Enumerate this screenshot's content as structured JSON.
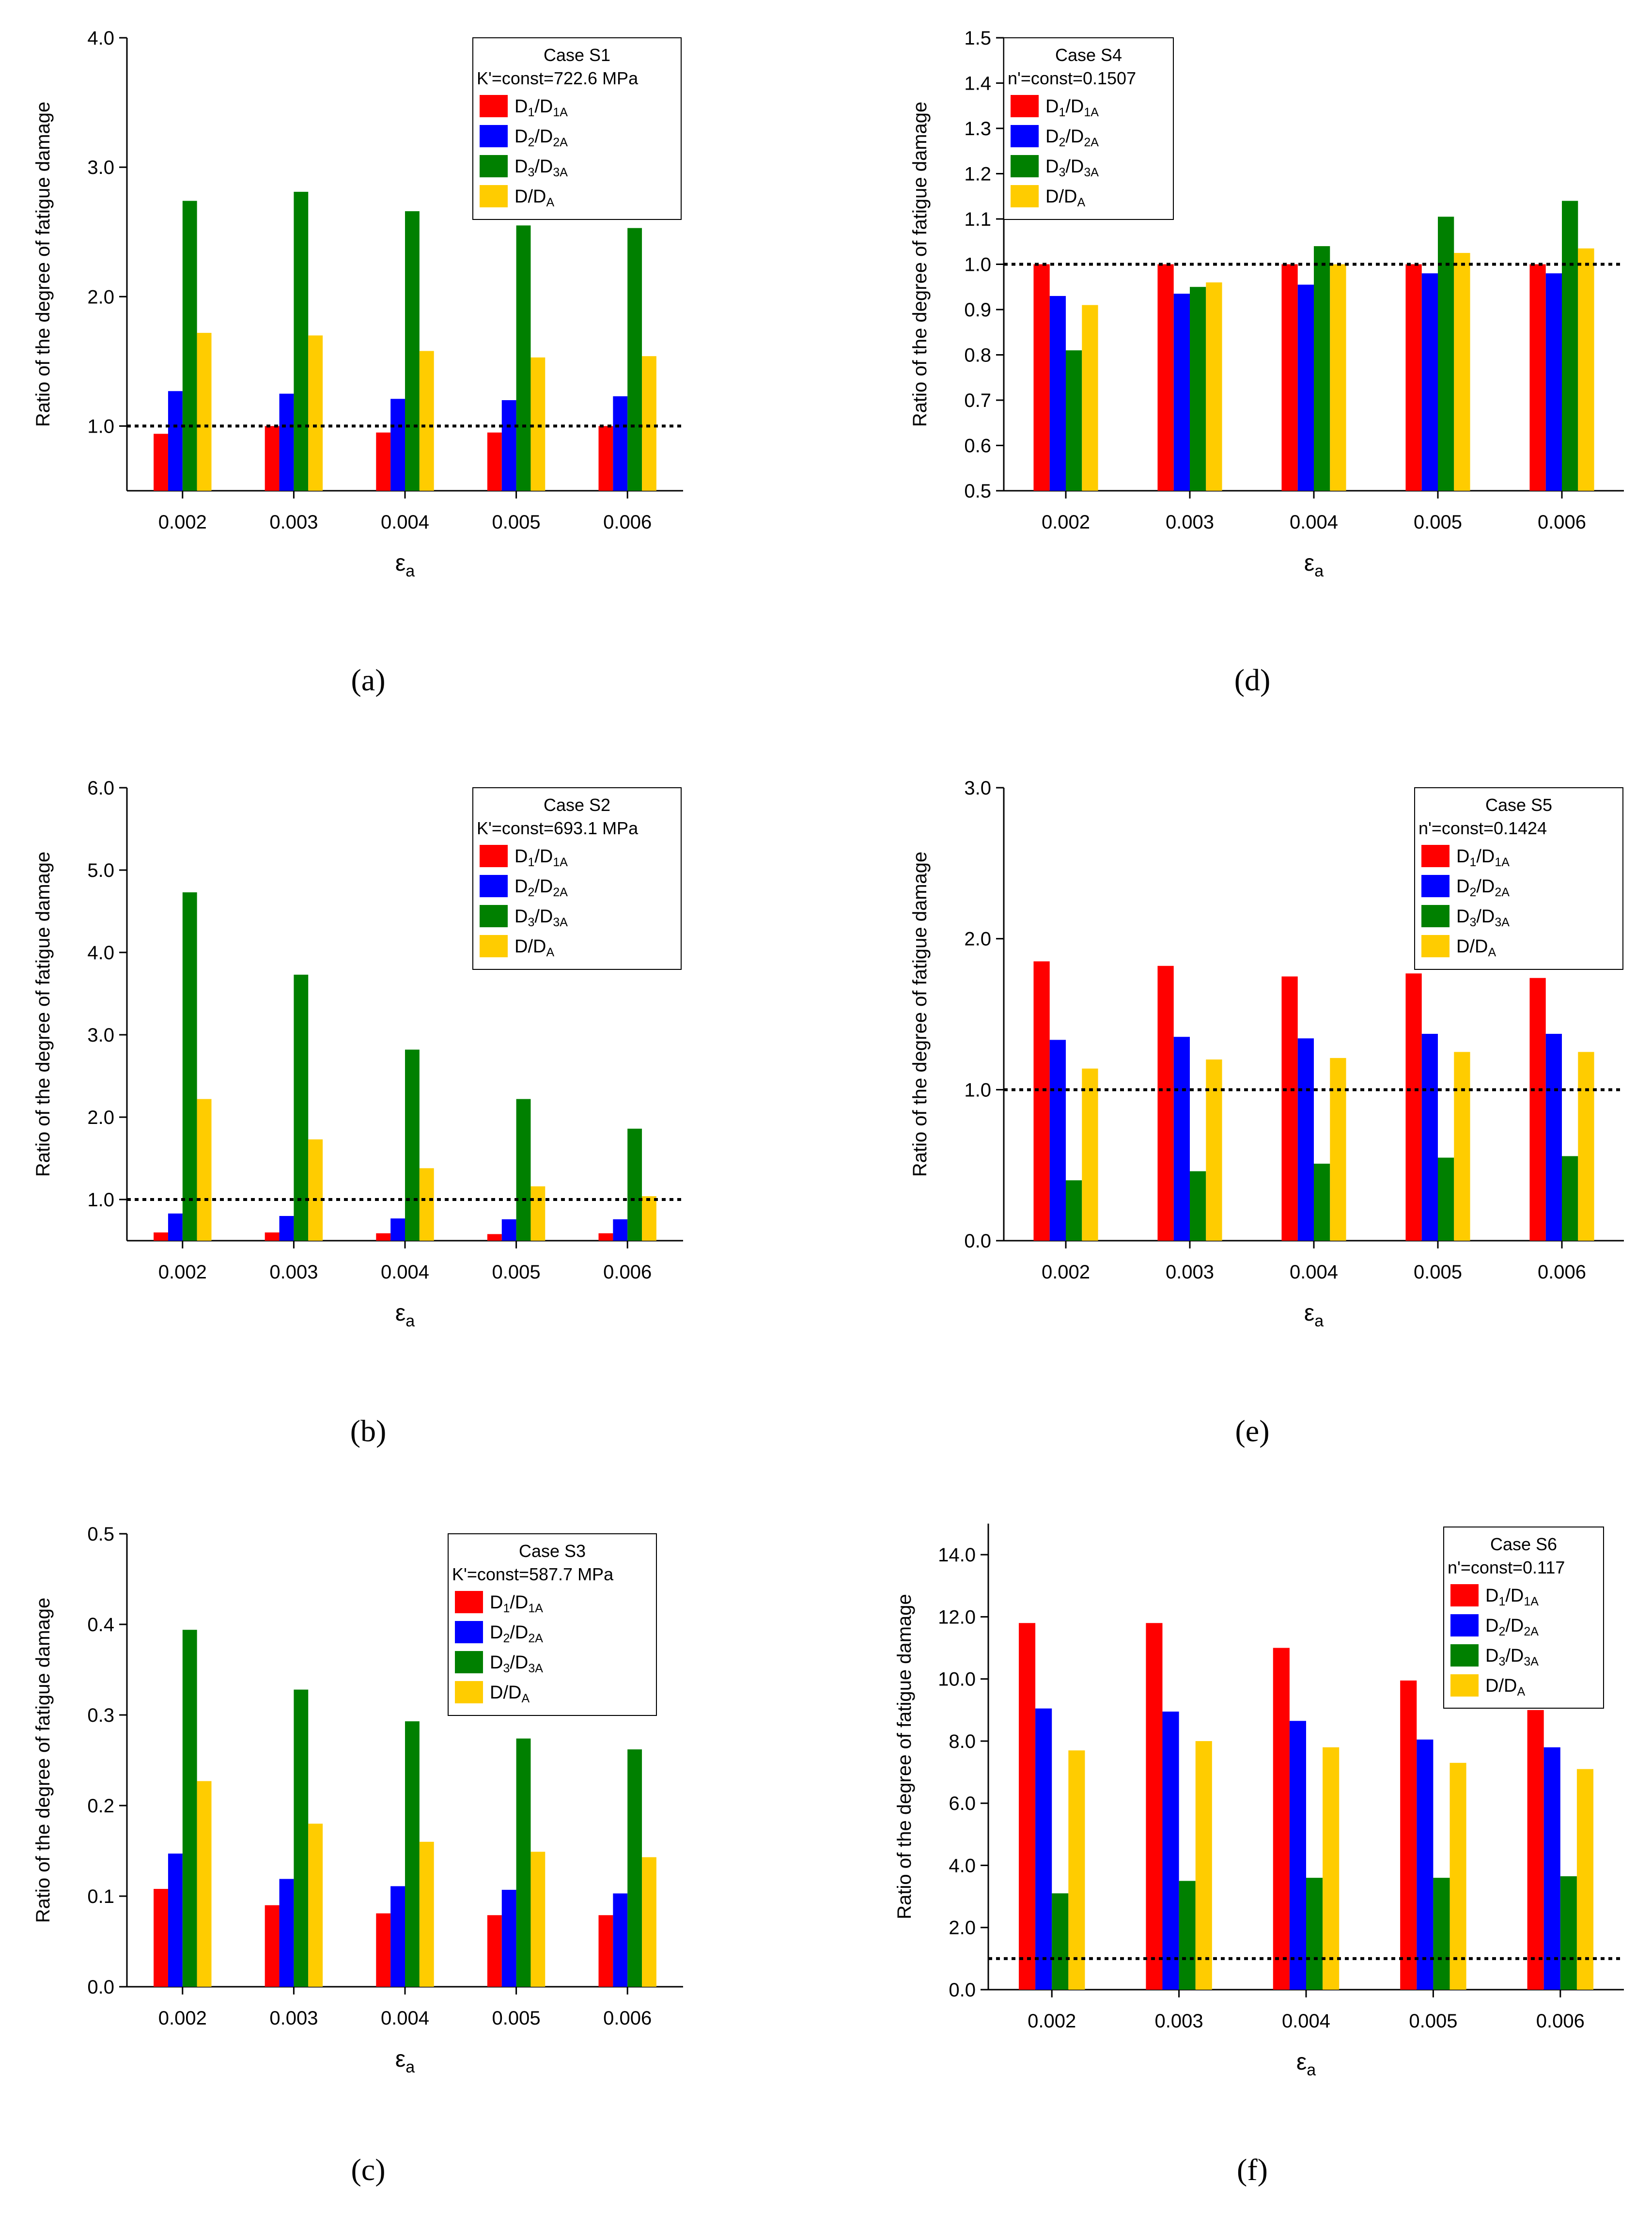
{
  "chart_data": [
    {
      "type": "bar",
      "panel_label": "(a)",
      "ylabel": "Ratio of the degree of fatigue damage",
      "xlabel": "εa",
      "categories": [
        "0.002",
        "0.003",
        "0.004",
        "0.005",
        "0.006"
      ],
      "ylim": [
        0.5,
        4.0
      ],
      "yticks": [
        1.0,
        2.0,
        3.0,
        4.0
      ],
      "ytick_labels": [
        "1.0",
        "2.0",
        "3.0",
        "4.0"
      ],
      "reference_line": 1.0,
      "legend_title": "Case S1",
      "legend_subtitle": "K'=const=722.6 MPa",
      "legend_position": "top-right",
      "series": [
        {
          "name": "D1/D1A",
          "color": "#ff0000",
          "values": [
            0.94,
            1.0,
            0.95,
            0.95,
            1.0
          ]
        },
        {
          "name": "D2/D2A",
          "color": "#0000ff",
          "values": [
            1.27,
            1.25,
            1.21,
            1.2,
            1.23
          ]
        },
        {
          "name": "D3/D3A",
          "color": "#008000",
          "values": [
            2.74,
            2.81,
            2.66,
            2.55,
            2.53
          ]
        },
        {
          "name": "D/DA",
          "color": "#ffcc00",
          "values": [
            1.72,
            1.7,
            1.58,
            1.53,
            1.54
          ]
        }
      ]
    },
    {
      "type": "bar",
      "panel_label": "(b)",
      "ylabel": "Ratio of the degree of fatigue damage",
      "xlabel": "εa",
      "categories": [
        "0.002",
        "0.003",
        "0.004",
        "0.005",
        "0.006"
      ],
      "ylim": [
        0.5,
        6.0
      ],
      "yticks": [
        1.0,
        2.0,
        3.0,
        4.0,
        5.0,
        6.0
      ],
      "ytick_labels": [
        "1.0",
        "2.0",
        "3.0",
        "4.0",
        "5.0",
        "6.0"
      ],
      "reference_line": 1.0,
      "legend_title": "Case S2",
      "legend_subtitle": "K'=const=693.1 MPa",
      "legend_position": "top-right",
      "series": [
        {
          "name": "D1/D1A",
          "color": "#ff0000",
          "values": [
            0.6,
            0.6,
            0.59,
            0.58,
            0.59
          ]
        },
        {
          "name": "D2/D2A",
          "color": "#0000ff",
          "values": [
            0.83,
            0.8,
            0.77,
            0.76,
            0.76
          ]
        },
        {
          "name": "D3/D3A",
          "color": "#008000",
          "values": [
            4.73,
            3.73,
            2.82,
            2.22,
            1.86
          ]
        },
        {
          "name": "D/DA",
          "color": "#ffcc00",
          "values": [
            2.22,
            1.73,
            1.38,
            1.16,
            1.04
          ]
        }
      ]
    },
    {
      "type": "bar",
      "panel_label": "(c)",
      "ylabel": "Ratio of the degree of fatigue damage",
      "xlabel": "εa",
      "categories": [
        "0.002",
        "0.003",
        "0.004",
        "0.005",
        "0.006"
      ],
      "ylim": [
        0.0,
        0.5
      ],
      "yticks": [
        0.0,
        0.1,
        0.2,
        0.3,
        0.4,
        0.5
      ],
      "ytick_labels": [
        "0.0",
        "0.1",
        "0.2",
        "0.3",
        "0.4",
        "0.5"
      ],
      "legend_title": "Case S3",
      "legend_subtitle": "K'=const=587.7 MPa",
      "legend_position": "top-right",
      "series": [
        {
          "name": "D1/D1A",
          "color": "#ff0000",
          "values": [
            0.108,
            0.09,
            0.081,
            0.079,
            0.079
          ]
        },
        {
          "name": "D2/D2A",
          "color": "#0000ff",
          "values": [
            0.147,
            0.119,
            0.111,
            0.107,
            0.103
          ]
        },
        {
          "name": "D3/D3A",
          "color": "#008000",
          "values": [
            0.394,
            0.328,
            0.293,
            0.274,
            0.262
          ]
        },
        {
          "name": "D/DA",
          "color": "#ffcc00",
          "values": [
            0.227,
            0.18,
            0.16,
            0.149,
            0.143
          ]
        }
      ]
    },
    {
      "type": "bar",
      "panel_label": "(d)",
      "ylabel": "Ratio of the degree of fatigue damage",
      "xlabel": "εa",
      "categories": [
        "0.002",
        "0.003",
        "0.004",
        "0.005",
        "0.006"
      ],
      "ylim": [
        0.5,
        1.5
      ],
      "yticks": [
        0.5,
        0.6,
        0.7,
        0.8,
        0.9,
        1.0,
        1.1,
        1.2,
        1.3,
        1.4,
        1.5
      ],
      "ytick_labels": [
        "0.5",
        "0.6",
        "0.7",
        "0.8",
        "0.9",
        "1.0",
        "1.1",
        "1.2",
        "1.3",
        "1.4",
        "1.5"
      ],
      "reference_line": 1.0,
      "legend_title": "Case S4",
      "legend_subtitle": "n'=const=0.1507",
      "legend_position": "top-left",
      "series": [
        {
          "name": "D1/D1A",
          "color": "#ff0000",
          "values": [
            1.0,
            1.0,
            1.0,
            1.0,
            1.0
          ]
        },
        {
          "name": "D2/D2A",
          "color": "#0000ff",
          "values": [
            0.93,
            0.935,
            0.955,
            0.98,
            0.98
          ]
        },
        {
          "name": "D3/D3A",
          "color": "#008000",
          "values": [
            0.81,
            0.95,
            1.04,
            1.105,
            1.14
          ]
        },
        {
          "name": "D/DA",
          "color": "#ffcc00",
          "values": [
            0.91,
            0.96,
            1.0,
            1.025,
            1.035
          ]
        }
      ]
    },
    {
      "type": "bar",
      "panel_label": "(e)",
      "ylabel": "Ratio of the degree of fatigue damage",
      "xlabel": "εa",
      "categories": [
        "0.002",
        "0.003",
        "0.004",
        "0.005",
        "0.006"
      ],
      "ylim": [
        0.0,
        3.0
      ],
      "yticks": [
        0.0,
        1.0,
        2.0,
        3.0
      ],
      "ytick_labels": [
        "0.0",
        "1.0",
        "2.0",
        "3.0"
      ],
      "reference_line": 1.0,
      "legend_title": "Case S5",
      "legend_subtitle": "n'=const=0.1424",
      "legend_position": "top-right",
      "series": [
        {
          "name": "D1/D1A",
          "color": "#ff0000",
          "values": [
            1.85,
            1.82,
            1.75,
            1.77,
            1.74
          ]
        },
        {
          "name": "D2/D2A",
          "color": "#0000ff",
          "values": [
            1.33,
            1.35,
            1.34,
            1.37,
            1.37
          ]
        },
        {
          "name": "D3/D3A",
          "color": "#008000",
          "values": [
            0.4,
            0.46,
            0.51,
            0.55,
            0.56
          ]
        },
        {
          "name": "D/DA",
          "color": "#ffcc00",
          "values": [
            1.14,
            1.2,
            1.21,
            1.25,
            1.25
          ]
        }
      ]
    },
    {
      "type": "bar",
      "panel_label": "(f)",
      "ylabel": "Ratio of the degree of fatigue damage",
      "xlabel": "εa",
      "categories": [
        "0.002",
        "0.003",
        "0.004",
        "0.005",
        "0.006"
      ],
      "ylim": [
        0.0,
        15.0
      ],
      "yticks": [
        0.0,
        2.0,
        4.0,
        6.0,
        8.0,
        10.0,
        12.0,
        14.0
      ],
      "ytick_labels": [
        "0.0",
        "2.0",
        "4.0",
        "6.0",
        "8.0",
        "10.0",
        "12.0",
        "14.0"
      ],
      "reference_line": 1.0,
      "legend_title": "Case S6",
      "legend_subtitle": "n'=const=0.117",
      "legend_position": "top-right",
      "series": [
        {
          "name": "D1/D1A",
          "color": "#ff0000",
          "values": [
            11.8,
            11.8,
            11.0,
            9.95,
            9.0
          ]
        },
        {
          "name": "D2/D2A",
          "color": "#0000ff",
          "values": [
            9.05,
            8.95,
            8.65,
            8.05,
            7.8
          ]
        },
        {
          "name": "D3/D3A",
          "color": "#008000",
          "values": [
            3.1,
            3.5,
            3.6,
            3.6,
            3.65
          ]
        },
        {
          "name": "D/DA",
          "color": "#ffcc00",
          "values": [
            7.7,
            8.0,
            7.8,
            7.3,
            7.1
          ]
        }
      ]
    }
  ]
}
